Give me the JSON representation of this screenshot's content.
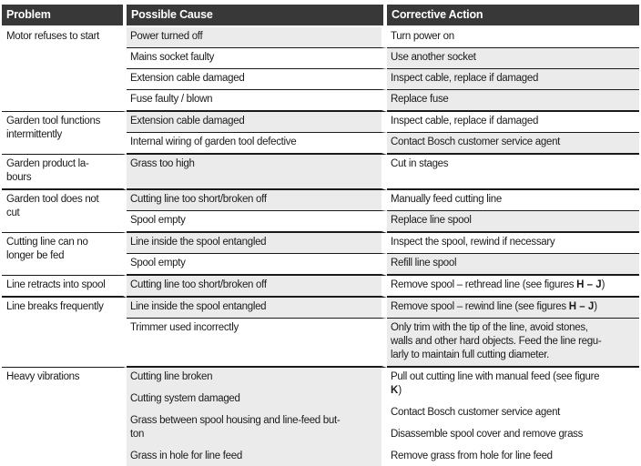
{
  "headers": {
    "problem": "Problem",
    "cause": "Possible Cause",
    "action": "Corrective Action"
  },
  "colors": {
    "header_bg": "#383838",
    "shaded_cell": "#ebebeb",
    "line": "#1a1a1a",
    "text": "#1b1b1b"
  },
  "table": {
    "sections": [
      {
        "problem": [
          [
            {
              "t": "Motor refuses to start"
            }
          ]
        ],
        "rows": [
          {
            "cause": {
              "shaded": true,
              "paras": [
                [
                  [
                    {
                      "t": "Power turned off"
                    }
                  ]
                ]
              ]
            },
            "action": {
              "shaded": false,
              "paras": [
                [
                  [
                    {
                      "t": "Turn power on"
                    }
                  ]
                ]
              ]
            }
          },
          {
            "cause": {
              "shaded": false,
              "paras": [
                [
                  [
                    {
                      "t": "Mains socket faulty"
                    }
                  ]
                ]
              ]
            },
            "action": {
              "shaded": true,
              "paras": [
                [
                  [
                    {
                      "t": "Use another socket"
                    }
                  ]
                ]
              ]
            }
          },
          {
            "cause": {
              "shaded": false,
              "paras": [
                [
                  [
                    {
                      "t": "Extension cable damaged"
                    }
                  ]
                ]
              ]
            },
            "action": {
              "shaded": true,
              "paras": [
                [
                  [
                    {
                      "t": "Inspect cable, replace if damaged"
                    }
                  ]
                ]
              ]
            }
          },
          {
            "cause": {
              "shaded": false,
              "paras": [
                [
                  [
                    {
                      "t": "Fuse faulty / blown"
                    }
                  ]
                ]
              ]
            },
            "action": {
              "shaded": true,
              "paras": [
                [
                  [
                    {
                      "t": "Replace fuse"
                    }
                  ]
                ]
              ]
            }
          }
        ]
      },
      {
        "problem": [
          [
            {
              "t": "Garden tool functions"
            }
          ],
          [
            {
              "t": "intermittently"
            }
          ]
        ],
        "rows": [
          {
            "cause": {
              "shaded": true,
              "paras": [
                [
                  [
                    {
                      "t": "Extension cable damaged"
                    }
                  ]
                ]
              ]
            },
            "action": {
              "shaded": false,
              "paras": [
                [
                  [
                    {
                      "t": "Inspect cable, replace if damaged"
                    }
                  ]
                ]
              ]
            }
          },
          {
            "cause": {
              "shaded": false,
              "paras": [
                [
                  [
                    {
                      "t": "Internal wiring of garden tool defective"
                    }
                  ]
                ]
              ]
            },
            "action": {
              "shaded": true,
              "paras": [
                [
                  [
                    {
                      "t": "Contact Bosch customer service agent"
                    }
                  ]
                ]
              ]
            }
          }
        ]
      },
      {
        "problem": [
          [
            {
              "t": "Garden product la-"
            }
          ],
          [
            {
              "t": "bours"
            }
          ]
        ],
        "rows": [
          {
            "cause": {
              "shaded": true,
              "paras": [
                [
                  [
                    {
                      "t": "Grass too high"
                    }
                  ]
                ]
              ]
            },
            "action": {
              "shaded": false,
              "paras": [
                [
                  [
                    {
                      "t": "Cut in stages"
                    }
                  ]
                ]
              ]
            }
          }
        ]
      },
      {
        "problem": [
          [
            {
              "t": "Garden tool does not"
            }
          ],
          [
            {
              "t": "cut"
            }
          ]
        ],
        "rows": [
          {
            "cause": {
              "shaded": true,
              "paras": [
                [
                  [
                    {
                      "t": "Cutting line too short/broken off"
                    }
                  ]
                ]
              ]
            },
            "action": {
              "shaded": false,
              "paras": [
                [
                  [
                    {
                      "t": "Manually feed cutting line"
                    }
                  ]
                ]
              ]
            }
          },
          {
            "cause": {
              "shaded": false,
              "paras": [
                [
                  [
                    {
                      "t": "Spool empty"
                    }
                  ]
                ]
              ]
            },
            "action": {
              "shaded": true,
              "paras": [
                [
                  [
                    {
                      "t": "Replace line spool"
                    }
                  ]
                ]
              ]
            }
          }
        ]
      },
      {
        "problem": [
          [
            {
              "t": "Cutting line can no"
            }
          ],
          [
            {
              "t": "longer be fed"
            }
          ]
        ],
        "rows": [
          {
            "cause": {
              "shaded": true,
              "paras": [
                [
                  [
                    {
                      "t": "Line inside the spool entangled"
                    }
                  ]
                ]
              ]
            },
            "action": {
              "shaded": false,
              "paras": [
                [
                  [
                    {
                      "t": "Inspect the spool, rewind if necessary"
                    }
                  ]
                ]
              ]
            }
          },
          {
            "cause": {
              "shaded": false,
              "paras": [
                [
                  [
                    {
                      "t": "Spool empty"
                    }
                  ]
                ]
              ]
            },
            "action": {
              "shaded": true,
              "paras": [
                [
                  [
                    {
                      "t": "Refill line spool"
                    }
                  ]
                ]
              ]
            }
          }
        ]
      },
      {
        "problem": [
          [
            {
              "t": "Line retracts into spool"
            }
          ]
        ],
        "rows": [
          {
            "cause": {
              "shaded": true,
              "paras": [
                [
                  [
                    {
                      "t": "Cutting line too short/broken off"
                    }
                  ]
                ]
              ]
            },
            "action": {
              "shaded": false,
              "paras": [
                [
                  [
                    {
                      "t": "Remove spool – rethread line (see figures "
                    },
                    {
                      "t": "H – J",
                      "b": true
                    },
                    {
                      "t": ")"
                    }
                  ]
                ]
              ]
            }
          }
        ]
      },
      {
        "problem": [
          [
            {
              "t": "Line breaks frequently"
            }
          ]
        ],
        "rows": [
          {
            "cause": {
              "shaded": true,
              "paras": [
                [
                  [
                    {
                      "t": "Line inside the spool entangled"
                    }
                  ]
                ]
              ]
            },
            "action": {
              "shaded": true,
              "paras": [
                [
                  [
                    {
                      "t": "Remove spool – rewind line (see figures "
                    },
                    {
                      "t": "H – J",
                      "b": true
                    },
                    {
                      "t": ")"
                    }
                  ]
                ]
              ]
            }
          },
          {
            "cause": {
              "shaded": false,
              "paras": [
                [
                  [
                    {
                      "t": "Trimmer used incorrectly"
                    }
                  ]
                ]
              ]
            },
            "action": {
              "shaded": true,
              "paras": [
                [
                  [
                    {
                      "t": "Only trim with the tip of the line, avoid stones,"
                    }
                  ],
                  [
                    {
                      "t": "walls and other hard objects. Feed the line regu-"
                    }
                  ],
                  [
                    {
                      "t": "larly to maintain full cutting diameter."
                    }
                  ]
                ]
              ]
            }
          }
        ]
      },
      {
        "problem": [
          [
            {
              "t": "Heavy vibrations"
            }
          ]
        ],
        "rows": [
          {
            "cause": {
              "shaded": true,
              "paras": [
                [
                  [
                    {
                      "t": "Cutting line broken"
                    }
                  ]
                ],
                [
                  [
                    {
                      "t": "Cutting system damaged"
                    }
                  ]
                ],
                [
                  [
                    {
                      "t": "Grass between spool housing and line-feed but-"
                    }
                  ],
                  [
                    {
                      "t": "ton"
                    }
                  ]
                ],
                [
                  [
                    {
                      "t": "Grass in hole for line feed"
                    }
                  ]
                ]
              ]
            },
            "action": {
              "shaded": false,
              "paras": [
                [
                  [
                    {
                      "t": "Pull out cutting line with manual feed (see figure"
                    }
                  ],
                  [
                    {
                      "t": "K",
                      "b": true
                    },
                    {
                      "t": ")"
                    }
                  ]
                ],
                [
                  [
                    {
                      "t": "Contact Bosch customer service agent"
                    }
                  ]
                ],
                [
                  [
                    {
                      "t": "Disassemble spool cover and remove grass"
                    }
                  ]
                ],
                [
                  [
                    {
                      "t": "Remove grass from hole for line feed"
                    }
                  ]
                ]
              ]
            }
          }
        ]
      }
    ]
  }
}
